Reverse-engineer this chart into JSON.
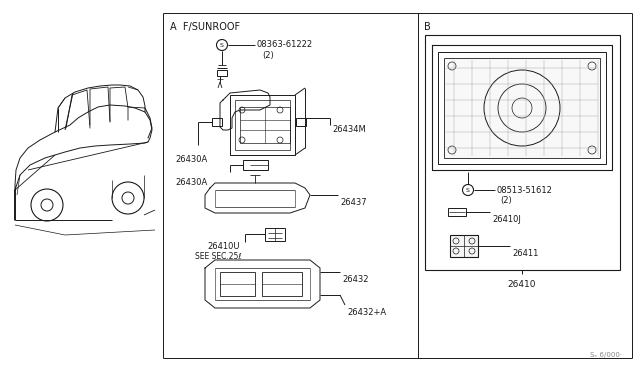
{
  "bg_color": "#ffffff",
  "line_color": "#1a1a1a",
  "text_color": "#1a1a1a",
  "fig_width": 6.4,
  "fig_height": 3.72,
  "section_A_label": "A  F/SUNROOF",
  "section_B_label": "B",
  "part_08363": "08363-61222",
  "part_08363_qty": "(2)",
  "part_26434M": "26434M",
  "part_26430A_1": "26430A",
  "part_26430A_2": "26430A",
  "part_26437": "26437",
  "part_26410U": "26410U",
  "see_sec": "SEE SEC.25ℓ",
  "part_26432": "26432",
  "part_26432A": "26432+A",
  "part_08513": "08513-51612",
  "part_08513_qty": "(2)",
  "part_26410J": "26410J",
  "part_26411": "26411",
  "part_26410": "26410",
  "watermark": "Sₑ 6/000·"
}
